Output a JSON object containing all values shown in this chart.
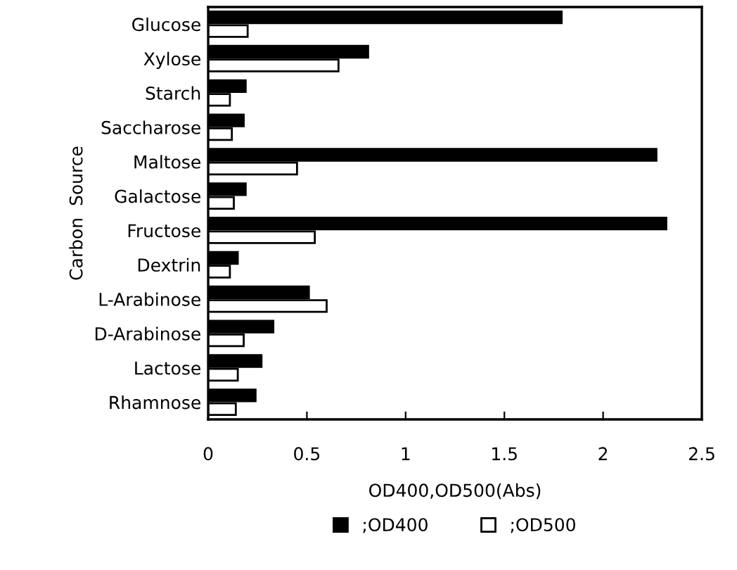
{
  "chart_data": {
    "type": "bar",
    "orientation": "horizontal",
    "xlabel": "OD400,OD500(Abs)",
    "ylabel": "Carbon  Source",
    "categories": [
      "Glucose",
      "Xylose",
      "Starch",
      "Saccharose",
      "Maltose",
      "Galactose",
      "Fructose",
      "Dextrin",
      "L-Arabinose",
      "D-Arabinose",
      "Lactose",
      "Rhamnose"
    ],
    "series": [
      {
        "name": ";OD400",
        "color": "#000000",
        "values": [
          1.79,
          0.81,
          0.19,
          0.18,
          2.27,
          0.19,
          2.32,
          0.15,
          0.51,
          0.33,
          0.27,
          0.24
        ]
      },
      {
        "name": ";OD500",
        "color": "#ffffff",
        "values": [
          0.2,
          0.66,
          0.11,
          0.12,
          0.45,
          0.13,
          0.54,
          0.11,
          0.6,
          0.18,
          0.15,
          0.14
        ]
      }
    ],
    "xlim": [
      0,
      2.5
    ],
    "xticks": [
      0,
      0.5,
      1,
      1.5,
      2,
      2.5
    ],
    "grid": false,
    "legend": "bottom"
  }
}
